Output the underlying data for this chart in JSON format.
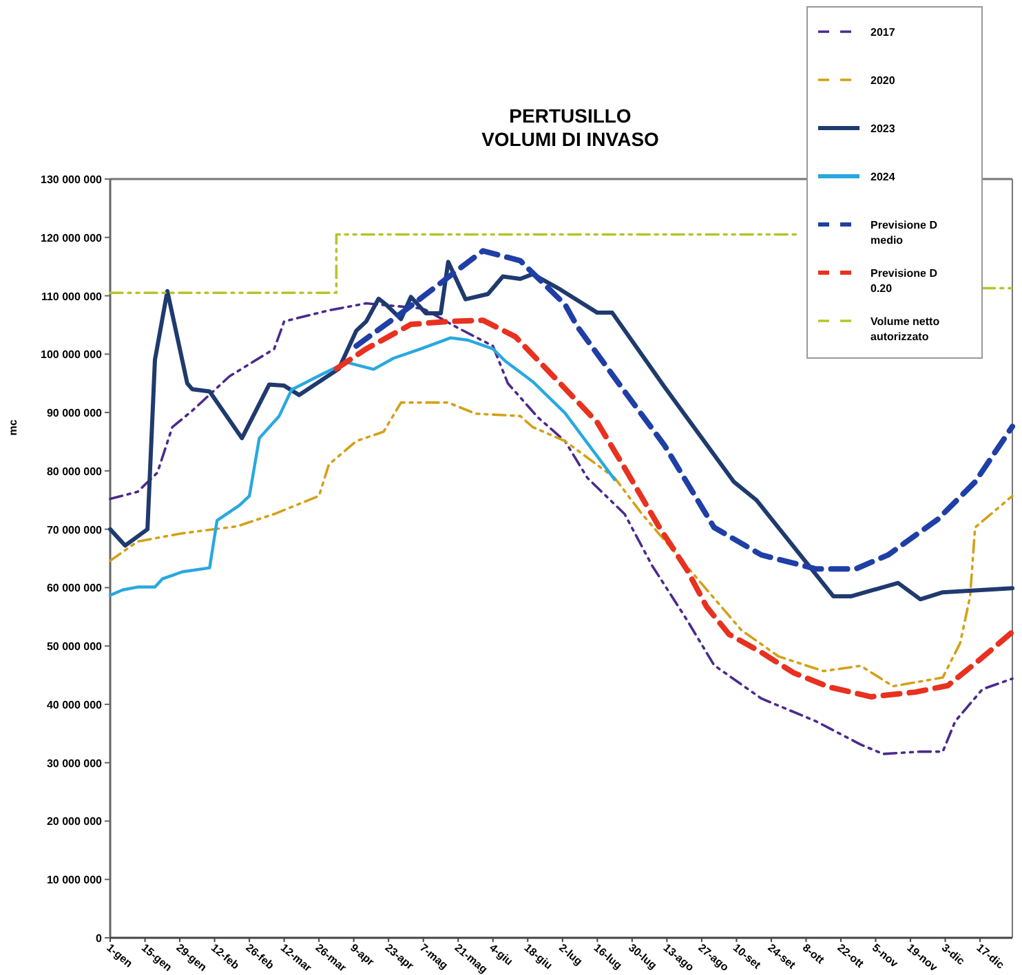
{
  "chart_data": {
    "type": "line",
    "title": "PERTUSILLO\nVOLUMI DI INVASO",
    "ylabel": "mc",
    "xlim": [
      "--01-01",
      "--12-30"
    ],
    "ylim": [
      0,
      130000000
    ],
    "xticks": [
      {
        "value": "--01-01",
        "label": "1-gen"
      },
      {
        "value": "--01-15",
        "label": "15-gen"
      },
      {
        "value": "--01-29",
        "label": "29-gen"
      },
      {
        "value": "--02-12",
        "label": "12-feb"
      },
      {
        "value": "--02-26",
        "label": "26-feb"
      },
      {
        "value": "--03-12",
        "label": "12-mar"
      },
      {
        "value": "--03-26",
        "label": "26-mar"
      },
      {
        "value": "--04-09",
        "label": "9-apr"
      },
      {
        "value": "--04-23",
        "label": "23-apr"
      },
      {
        "value": "--05-07",
        "label": "7-mag"
      },
      {
        "value": "--05-21",
        "label": "21-mag"
      },
      {
        "value": "--06-04",
        "label": "4-giu"
      },
      {
        "value": "--06-18",
        "label": "18-giu"
      },
      {
        "value": "--07-02",
        "label": "2-lug"
      },
      {
        "value": "--07-16",
        "label": "16-lug"
      },
      {
        "value": "--07-30",
        "label": "30-lug"
      },
      {
        "value": "--08-13",
        "label": "13-ago"
      },
      {
        "value": "--08-27",
        "label": "27-ago"
      },
      {
        "value": "--09-10",
        "label": "10-set"
      },
      {
        "value": "--09-24",
        "label": "24-set"
      },
      {
        "value": "--10-08",
        "label": "8-ott"
      },
      {
        "value": "--10-22",
        "label": "22-ott"
      },
      {
        "value": "--11-05",
        "label": "5-nov"
      },
      {
        "value": "--11-19",
        "label": "19-nov"
      },
      {
        "value": "--12-03",
        "label": "3-dic"
      },
      {
        "value": "--12-17",
        "label": "17-dic"
      }
    ],
    "yticks": [
      {
        "value": 0,
        "label": "0"
      },
      {
        "value": 10000000,
        "label": "10 000 000"
      },
      {
        "value": 20000000,
        "label": "20 000 000"
      },
      {
        "value": 30000000,
        "label": "30 000 000"
      },
      {
        "value": 40000000,
        "label": "40 000 000"
      },
      {
        "value": 50000000,
        "label": "50 000 000"
      },
      {
        "value": 60000000,
        "label": "60 000 000"
      },
      {
        "value": 70000000,
        "label": "70 000 000"
      },
      {
        "value": 80000000,
        "label": "80 000 000"
      },
      {
        "value": 90000000,
        "label": "90 000 000"
      },
      {
        "value": 100000000,
        "label": "100 000 000"
      },
      {
        "value": 110000000,
        "label": "110 000 000"
      },
      {
        "value": 120000000,
        "label": "120 000 000"
      },
      {
        "value": 130000000,
        "label": "130 000 000"
      }
    ],
    "legend": "top right",
    "marker": "none",
    "series": [
      {
        "name": "2017",
        "color": "#4b2a8c",
        "line_style": "dotted",
        "x": [
          "--01-01",
          "--01-12",
          "--01-20",
          "--01-26",
          "--02-03",
          "--02-18",
          "--03-08",
          "--03-12",
          "--03-30",
          "--04-14",
          "--05-07",
          "--05-20",
          "--06-04",
          "--06-10",
          "--06-22",
          "--07-03",
          "--07-12",
          "--07-27",
          "--08-07",
          "--08-21",
          "--09-01",
          "--09-20",
          "--10-12",
          "--10-30",
          "--11-08",
          "--11-23",
          "--12-02",
          "--12-07",
          "--12-18",
          "--12-30"
        ],
        "values": [
          75200000,
          76400000,
          79700000,
          87500000,
          90300000,
          96200000,
          100900000,
          105600000,
          107500000,
          108700000,
          107800000,
          104700000,
          101400000,
          95000000,
          89200000,
          85100000,
          78800000,
          72600000,
          63800000,
          54500000,
          46700000,
          41000000,
          37100000,
          33100000,
          31500000,
          31900000,
          31900000,
          37100000,
          42600000,
          44400000
        ]
      },
      {
        "name": "2020",
        "color": "#d4a017",
        "line_style": "dotted",
        "x": [
          "--01-01",
          "--01-12",
          "--01-30",
          "--02-21",
          "--03-08",
          "--03-26",
          "--03-30",
          "--04-10",
          "--04-21",
          "--04-28",
          "--05-17",
          "--05-28",
          "--06-15",
          "--06-20",
          "--07-03",
          "--07-23",
          "--08-03",
          "--09-12",
          "--09-27",
          "--10-15",
          "--10-30",
          "--11-12",
          "--12-02",
          "--12-09",
          "--12-13",
          "--12-15",
          "--12-30"
        ],
        "values": [
          64600000,
          67900000,
          69300000,
          70500000,
          72600000,
          75700000,
          81100000,
          85100000,
          86700000,
          91700000,
          91700000,
          89800000,
          89400000,
          87500000,
          85100000,
          78800000,
          72600000,
          52700000,
          48200000,
          45700000,
          46600000,
          43100000,
          44600000,
          50500000,
          58500000,
          70300000,
          75700000
        ]
      },
      {
        "name": "2023",
        "color": "#1f3a6e",
        "line_style": "solid",
        "x": [
          "--01-01",
          "--01-07",
          "--01-16",
          "--01-19",
          "--01-24",
          "--02-01",
          "--02-03",
          "--02-10",
          "--02-23",
          "--03-06",
          "--03-12",
          "--03-18",
          "--04-03",
          "--04-10",
          "--04-14",
          "--04-19",
          "--04-22",
          "--04-28",
          "--05-02",
          "--05-08",
          "--05-14",
          "--05-17",
          "--05-24",
          "--06-02",
          "--06-08",
          "--06-15",
          "--06-20",
          "--07-01",
          "--07-16",
          "--07-22",
          "--08-12",
          "--09-09",
          "--09-18",
          "--10-19",
          "--10-26",
          "--11-14",
          "--11-23",
          "--12-02",
          "--12-30"
        ],
        "values": [
          70000000,
          67200000,
          70000000,
          99000000,
          110800000,
          95000000,
          94000000,
          93600000,
          85600000,
          94800000,
          94600000,
          93000000,
          97500000,
          104000000,
          105600000,
          109500000,
          108500000,
          106000000,
          109800000,
          107000000,
          107000000,
          115800000,
          109400000,
          110300000,
          113300000,
          112900000,
          113700000,
          111100000,
          107100000,
          107100000,
          94400000,
          78100000,
          75000000,
          58500000,
          58500000,
          60800000,
          58000000,
          59200000,
          59900000
        ]
      },
      {
        "name": "2024",
        "color": "#29a8e0",
        "line_style": "solid",
        "x": [
          "--01-01",
          "--01-06",
          "--01-12",
          "--01-19",
          "--01-22",
          "--01-30",
          "--02-10",
          "--02-13",
          "--02-22",
          "--02-26",
          "--03-02",
          "--03-10",
          "--03-15",
          "--03-26",
          "--04-06",
          "--04-17",
          "--04-25",
          "--05-06",
          "--05-18",
          "--05-25",
          "--06-04",
          "--06-09",
          "--06-20",
          "--07-03",
          "--07-23"
        ],
        "values": [
          58700000,
          59600000,
          60100000,
          60100000,
          61500000,
          62700000,
          63400000,
          71500000,
          74100000,
          75700000,
          85600000,
          89400000,
          93900000,
          96300000,
          98600000,
          97400000,
          99300000,
          100900000,
          102800000,
          102400000,
          100900000,
          98800000,
          95300000,
          89900000,
          78500000
        ]
      },
      {
        "name": "Previsione D medio",
        "color": "#1f3fa6",
        "line_style": "dashed",
        "x": [
          "--04-10",
          "--04-29",
          "--05-18",
          "--05-31",
          "--06-15",
          "--07-03",
          "--07-08",
          "--07-27",
          "--08-12",
          "--09-01",
          "--09-20",
          "--10-12",
          "--10-28",
          "--11-10",
          "--11-30",
          "--12-15",
          "--12-30"
        ],
        "values": [
          101400000,
          107300000,
          113500000,
          117700000,
          116000000,
          108500000,
          104700000,
          93600000,
          84400000,
          70300000,
          65600000,
          63200000,
          63200000,
          65600000,
          71700000,
          78100000,
          87600000
        ]
      },
      {
        "name": "Previsione D 0.20",
        "color": "#e8311f",
        "line_style": "dashed",
        "x": [
          "--04-02",
          "--04-14",
          "--05-02",
          "--05-17",
          "--05-31",
          "--06-13",
          "--06-27",
          "--07-16",
          "--07-27",
          "--08-10",
          "--08-21",
          "--08-29",
          "--09-07",
          "--09-20",
          "--10-03",
          "--10-17",
          "--11-03",
          "--11-21",
          "--12-04",
          "--12-17",
          "--12-30"
        ],
        "values": [
          97500000,
          100900000,
          105100000,
          105600000,
          105800000,
          103000000,
          96800000,
          88300000,
          80500000,
          70300000,
          63100000,
          56700000,
          52000000,
          48900000,
          45400000,
          43000000,
          41300000,
          42100000,
          43200000,
          47700000,
          52400000
        ]
      },
      {
        "name": "Volume netto autorizzato",
        "color": "#b5c42a",
        "line_style": "dotted",
        "x": [
          "--01-01",
          "--04-02",
          "--04-02",
          "--10-05",
          "--10-28",
          "--12-18",
          "--12-30"
        ],
        "values": [
          110500000,
          110500000,
          120500000,
          120500000,
          null,
          111300000,
          111300000
        ]
      }
    ]
  }
}
